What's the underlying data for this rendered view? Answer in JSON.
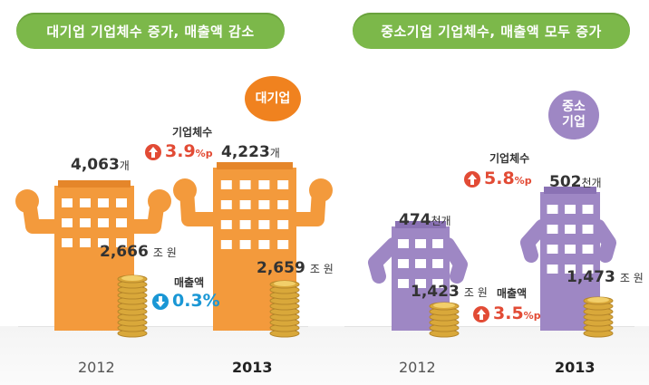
{
  "banners": {
    "left": "대기업 기업체수 증가, 매출액 감소",
    "right": "중소기업 기업체수, 매출액 모두 증가"
  },
  "large": {
    "bubble": "대기업",
    "y2012": {
      "year": "2012",
      "firms": "4,063",
      "firms_unit": "개",
      "sales": "2,666",
      "sales_unit": "조 원"
    },
    "y2013": {
      "year": "2013",
      "firms": "4,223",
      "firms_unit": "개",
      "sales": "2,659",
      "sales_unit": "조 원"
    },
    "firms_change": {
      "label": "기업체수",
      "value": "3.9",
      "unit": "%p",
      "direction": "up"
    },
    "sales_change": {
      "label": "매출액",
      "value": "0.3",
      "unit": "%",
      "direction": "down"
    }
  },
  "sme": {
    "bubble_line1": "중소",
    "bubble_line2": "기업",
    "y2012": {
      "year": "2012",
      "firms": "474",
      "firms_unit": "천개",
      "sales": "1,423",
      "sales_unit": "조 원"
    },
    "y2013": {
      "year": "2013",
      "firms": "502",
      "firms_unit": "천개",
      "sales": "1,473",
      "sales_unit": "조 원"
    },
    "firms_change": {
      "label": "기업체수",
      "value": "5.8",
      "unit": "%p",
      "direction": "up"
    },
    "sales_change": {
      "label": "매출액",
      "value": "3.5",
      "unit": "%p",
      "direction": "up"
    }
  },
  "colors": {
    "banner": "#7cb84a",
    "large_building": "#f39a3c",
    "large_building_top": "#e5862a",
    "sme_building": "#9e87c4",
    "sme_building_top": "#8a72b4",
    "bubble_large": "#f0821f",
    "bubble_sme": "#9e87c4",
    "up_red": "#e24b35",
    "down_blue": "#1a97d5",
    "coin": "#d9a83a"
  },
  "chart_data": [
    {
      "type": "bar",
      "title": "대기업 기업체수 증가, 매출액 감소",
      "categories": [
        "2012",
        "2013"
      ],
      "series": [
        {
          "name": "기업체수",
          "values": [
            4063,
            4223
          ],
          "unit": "개"
        },
        {
          "name": "매출액",
          "values": [
            2666,
            2659
          ],
          "unit": "조 원"
        }
      ]
    },
    {
      "type": "bar",
      "title": "중소기업 기업체수, 매출액 모두 증가",
      "categories": [
        "2012",
        "2013"
      ],
      "series": [
        {
          "name": "기업체수",
          "values": [
            474,
            502
          ],
          "unit": "천개"
        },
        {
          "name": "매출액",
          "values": [
            1423,
            1473
          ],
          "unit": "조 원"
        }
      ]
    }
  ]
}
